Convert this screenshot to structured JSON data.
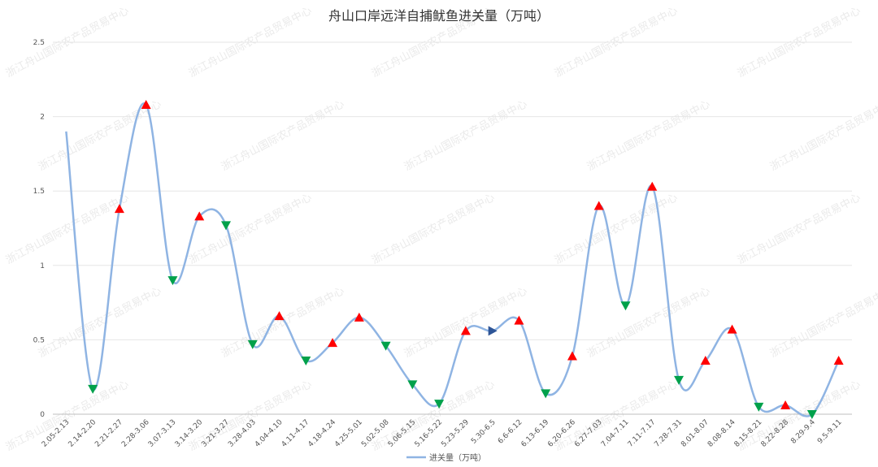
{
  "chart_data": {
    "type": "line",
    "title": "舟山口岸远洋自捕鱿鱼进关量（万吨）",
    "ylim": [
      0,
      2.5
    ],
    "yticks": [
      "0",
      "0.5",
      "1",
      "1.5",
      "2",
      "2.5"
    ],
    "grid": true,
    "legend_position": "bottom",
    "watermark": "浙江舟山国际农产品贸易中心",
    "categories": [
      "2.05-2.13",
      "2.14-2.20",
      "2.21-2.27",
      "2.28-3.06",
      "3.07-3.13",
      "3.14-3.20",
      "3.21-3.27",
      "3.28-4.03",
      "4.04-4.10",
      "4.11-4.17",
      "4.18-4.24",
      "4.25-5.01",
      "5.02-5.08",
      "5.06-5.15",
      "5.16-5.22",
      "5.23-5.29",
      "5.30-6.5",
      "6.6-6.12",
      "6.13-6.19",
      "6.20-6.26",
      "6.27-7.03",
      "7.04-7.11",
      "7.11-7.17",
      "7.28-7.31",
      "8.01-8.07",
      "8.08-8.14",
      "8.15-8.21",
      "8.22-8.28",
      "8.29-9.4",
      "9.5-9.11"
    ],
    "series": [
      {
        "name": "进关量（万吨）",
        "color": "#8fb4e3",
        "values": [
          1.9,
          0.17,
          1.38,
          2.08,
          0.9,
          1.33,
          1.27,
          0.47,
          0.66,
          0.36,
          0.48,
          0.65,
          0.46,
          0.2,
          0.07,
          0.56,
          0.56,
          0.63,
          0.14,
          0.39,
          1.4,
          0.73,
          1.53,
          0.23,
          0.36,
          0.57,
          0.05,
          0.06,
          0.0,
          0.36
        ],
        "markers": [
          "none",
          "down",
          "up",
          "up",
          "down",
          "up",
          "down",
          "down",
          "up",
          "down",
          "up",
          "up",
          "down",
          "down",
          "down",
          "up",
          "right",
          "up",
          "down",
          "up",
          "up",
          "down",
          "up",
          "down",
          "up",
          "up",
          "down",
          "up",
          "down",
          "up"
        ]
      }
    ],
    "marker_colors": {
      "up": "#ff0000",
      "down": "#00a14b",
      "right": "#2e5597"
    }
  }
}
